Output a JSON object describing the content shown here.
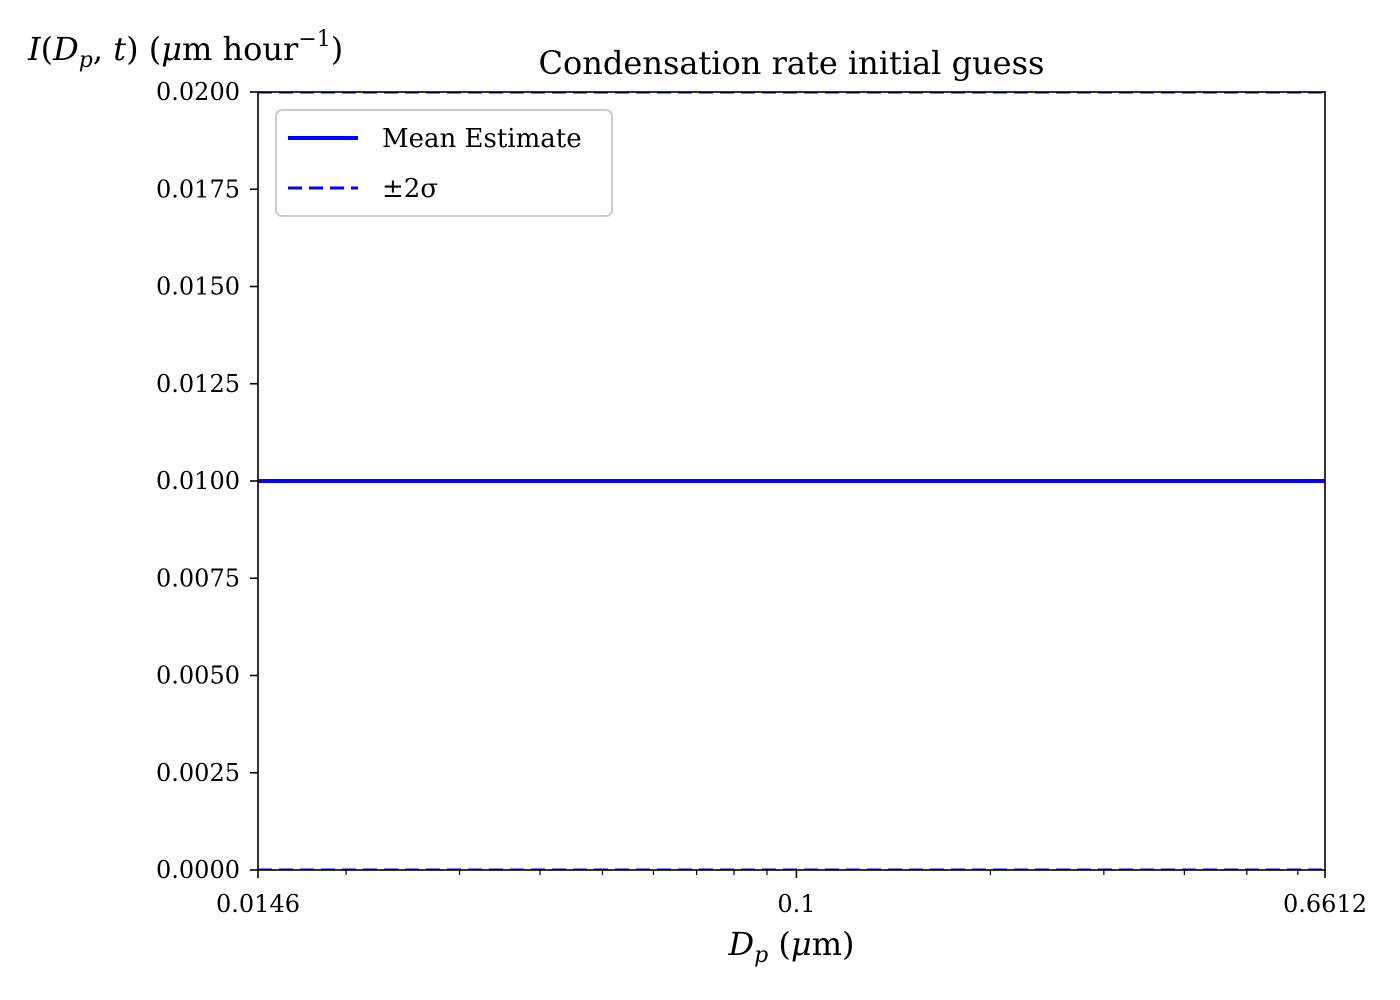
{
  "chart_data": {
    "type": "line",
    "title": "Condensation rate initial guess",
    "xlabel": "D_p (μm)",
    "ylabel": "I(D_p, t) (μm hour^-1)",
    "x_scale": "log",
    "xlim": [
      0.0146,
      0.6612
    ],
    "ylim": [
      0,
      0.02
    ],
    "x_ticks": [
      {
        "value": 0.0146,
        "label": "0.0146"
      },
      {
        "value": 0.1,
        "label": "0.1"
      },
      {
        "value": 0.6612,
        "label": "0.6612"
      }
    ],
    "y_ticks": [
      {
        "value": 0.0,
        "label": "0.0000"
      },
      {
        "value": 0.0025,
        "label": "0.0025"
      },
      {
        "value": 0.005,
        "label": "0.0050"
      },
      {
        "value": 0.0075,
        "label": "0.0075"
      },
      {
        "value": 0.01,
        "label": "0.0100"
      },
      {
        "value": 0.0125,
        "label": "0.0125"
      },
      {
        "value": 0.015,
        "label": "0.0150"
      },
      {
        "value": 0.0175,
        "label": "0.0175"
      },
      {
        "value": 0.02,
        "label": "0.0200"
      }
    ],
    "series": [
      {
        "name": "Mean Estimate",
        "style": "solid",
        "color": "#0000ff",
        "x": [
          0.0146,
          0.6612
        ],
        "y": [
          0.01,
          0.01
        ]
      },
      {
        "name": "±2σ",
        "style": "dashed",
        "color": "#0000ff",
        "x": [
          0.0146,
          0.6612
        ],
        "y": [
          0.0,
          0.0
        ]
      },
      {
        "name": "",
        "style": "dashed",
        "color": "#0000ff",
        "x": [
          0.0146,
          0.6612
        ],
        "y": [
          0.02,
          0.02
        ]
      }
    ],
    "grid": false,
    "legend_position": "top-left"
  }
}
